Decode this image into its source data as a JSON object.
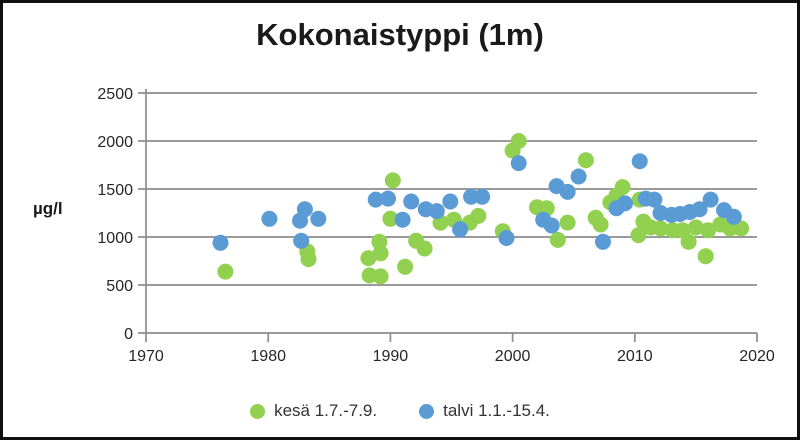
{
  "title": "Kokonaistyppi (1m)",
  "y_axis_label": "µg/l",
  "colors": {
    "kesa_green": "#92d050",
    "talvi_blue": "#5b9bd5",
    "gridline": "#8c8c8c",
    "axis": "#8c8c8c",
    "tick_text": "#262626",
    "frame": "#111111"
  },
  "chart_data": {
    "type": "scatter",
    "title": "Kokonaistyppi (1m)",
    "ylabel": "µg/l",
    "xlabel": "",
    "xlim": [
      1970,
      2020
    ],
    "ylim": [
      0,
      2500
    ],
    "x_ticks": [
      1970,
      1980,
      1990,
      2000,
      2010,
      2020
    ],
    "y_ticks": [
      0,
      500,
      1000,
      1500,
      2000,
      2500
    ],
    "grid": "horizontal",
    "legend_position": "bottom",
    "marker_radius": 8,
    "series": [
      {
        "name": "kesä 1.7.-7.9.",
        "color": "#92d050",
        "points": [
          [
            1976.5,
            640
          ],
          [
            1983.2,
            850
          ],
          [
            1983.3,
            770
          ],
          [
            1988.2,
            780
          ],
          [
            1988.3,
            600
          ],
          [
            1989.1,
            950
          ],
          [
            1989.2,
            830
          ],
          [
            1989.2,
            590
          ],
          [
            1990.0,
            1190
          ],
          [
            1990.2,
            1590
          ],
          [
            1991.2,
            690
          ],
          [
            1992.1,
            960
          ],
          [
            1992.8,
            880
          ],
          [
            1994.1,
            1150
          ],
          [
            1995.2,
            1180
          ],
          [
            1996.5,
            1150
          ],
          [
            1997.2,
            1220
          ],
          [
            1999.2,
            1060
          ],
          [
            2000.0,
            1900
          ],
          [
            2000.5,
            2000
          ],
          [
            2002.0,
            1310
          ],
          [
            2002.8,
            1300
          ],
          [
            2003.7,
            970
          ],
          [
            2004.5,
            1150
          ],
          [
            2006.0,
            1800
          ],
          [
            2006.8,
            1200
          ],
          [
            2007.2,
            1130
          ],
          [
            2008.0,
            1360
          ],
          [
            2008.5,
            1430
          ],
          [
            2009.0,
            1520
          ],
          [
            2010.3,
            1020
          ],
          [
            2010.4,
            1390
          ],
          [
            2010.7,
            1160
          ],
          [
            2011.3,
            1100
          ],
          [
            2012.1,
            1090
          ],
          [
            2013.1,
            1070
          ],
          [
            2013.9,
            1070
          ],
          [
            2014.4,
            950
          ],
          [
            2015.0,
            1100
          ],
          [
            2015.8,
            800
          ],
          [
            2016.0,
            1070
          ],
          [
            2017.0,
            1130
          ],
          [
            2017.8,
            1090
          ],
          [
            2018.7,
            1090
          ]
        ]
      },
      {
        "name": "talvi 1.1.-15.4.",
        "color": "#5b9bd5",
        "points": [
          [
            1976.1,
            940
          ],
          [
            1980.1,
            1190
          ],
          [
            1982.6,
            1170
          ],
          [
            1982.7,
            960
          ],
          [
            1983.0,
            1290
          ],
          [
            1984.1,
            1190
          ],
          [
            1988.8,
            1390
          ],
          [
            1989.8,
            1400
          ],
          [
            1991.0,
            1180
          ],
          [
            1991.7,
            1370
          ],
          [
            1992.9,
            1290
          ],
          [
            1993.8,
            1270
          ],
          [
            1994.9,
            1370
          ],
          [
            1995.7,
            1080
          ],
          [
            1996.6,
            1420
          ],
          [
            1997.5,
            1420
          ],
          [
            1999.5,
            990
          ],
          [
            2000.5,
            1770
          ],
          [
            2002.5,
            1180
          ],
          [
            2003.2,
            1120
          ],
          [
            2003.6,
            1530
          ],
          [
            2004.5,
            1470
          ],
          [
            2005.4,
            1630
          ],
          [
            2007.4,
            950
          ],
          [
            2008.5,
            1300
          ],
          [
            2009.2,
            1350
          ],
          [
            2010.4,
            1790
          ],
          [
            2010.9,
            1400
          ],
          [
            2011.6,
            1390
          ],
          [
            2012.1,
            1250
          ],
          [
            2013.0,
            1230
          ],
          [
            2013.7,
            1240
          ],
          [
            2014.5,
            1260
          ],
          [
            2015.3,
            1290
          ],
          [
            2016.2,
            1390
          ],
          [
            2017.3,
            1280
          ],
          [
            2018.1,
            1210
          ]
        ]
      }
    ]
  }
}
